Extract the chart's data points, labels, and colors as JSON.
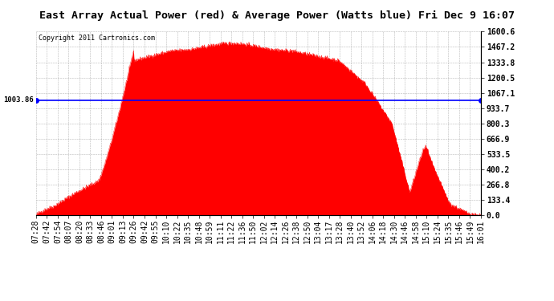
{
  "title": "East Array Actual Power (red) & Average Power (Watts blue) Fri Dec 9 16:07",
  "copyright": "Copyright 2011 Cartronics.com",
  "average_power": 1003.86,
  "y_ticks": [
    0.0,
    133.4,
    266.8,
    400.2,
    533.5,
    666.9,
    800.3,
    933.7,
    1067.1,
    1200.5,
    1333.8,
    1467.2,
    1600.6
  ],
  "y_max": 1600.6,
  "y_min": 0.0,
  "avg_label": "1003.86",
  "x_labels": [
    "07:28",
    "07:42",
    "07:54",
    "08:07",
    "08:20",
    "08:33",
    "08:46",
    "09:01",
    "09:13",
    "09:26",
    "09:42",
    "09:55",
    "10:10",
    "10:22",
    "10:35",
    "10:48",
    "10:59",
    "11:11",
    "11:22",
    "11:36",
    "11:50",
    "12:02",
    "12:14",
    "12:26",
    "12:38",
    "12:50",
    "13:04",
    "13:17",
    "13:28",
    "13:40",
    "13:52",
    "14:06",
    "14:18",
    "14:30",
    "14:46",
    "14:58",
    "15:10",
    "15:24",
    "15:35",
    "15:46",
    "15:49",
    "16:01"
  ],
  "bg_color": "#ffffff",
  "plot_bg": "#ffffff",
  "red_color": "#ff0000",
  "blue_color": "#0000ff",
  "grid_color": "#888888",
  "title_fontsize": 9.5,
  "tick_fontsize": 7
}
